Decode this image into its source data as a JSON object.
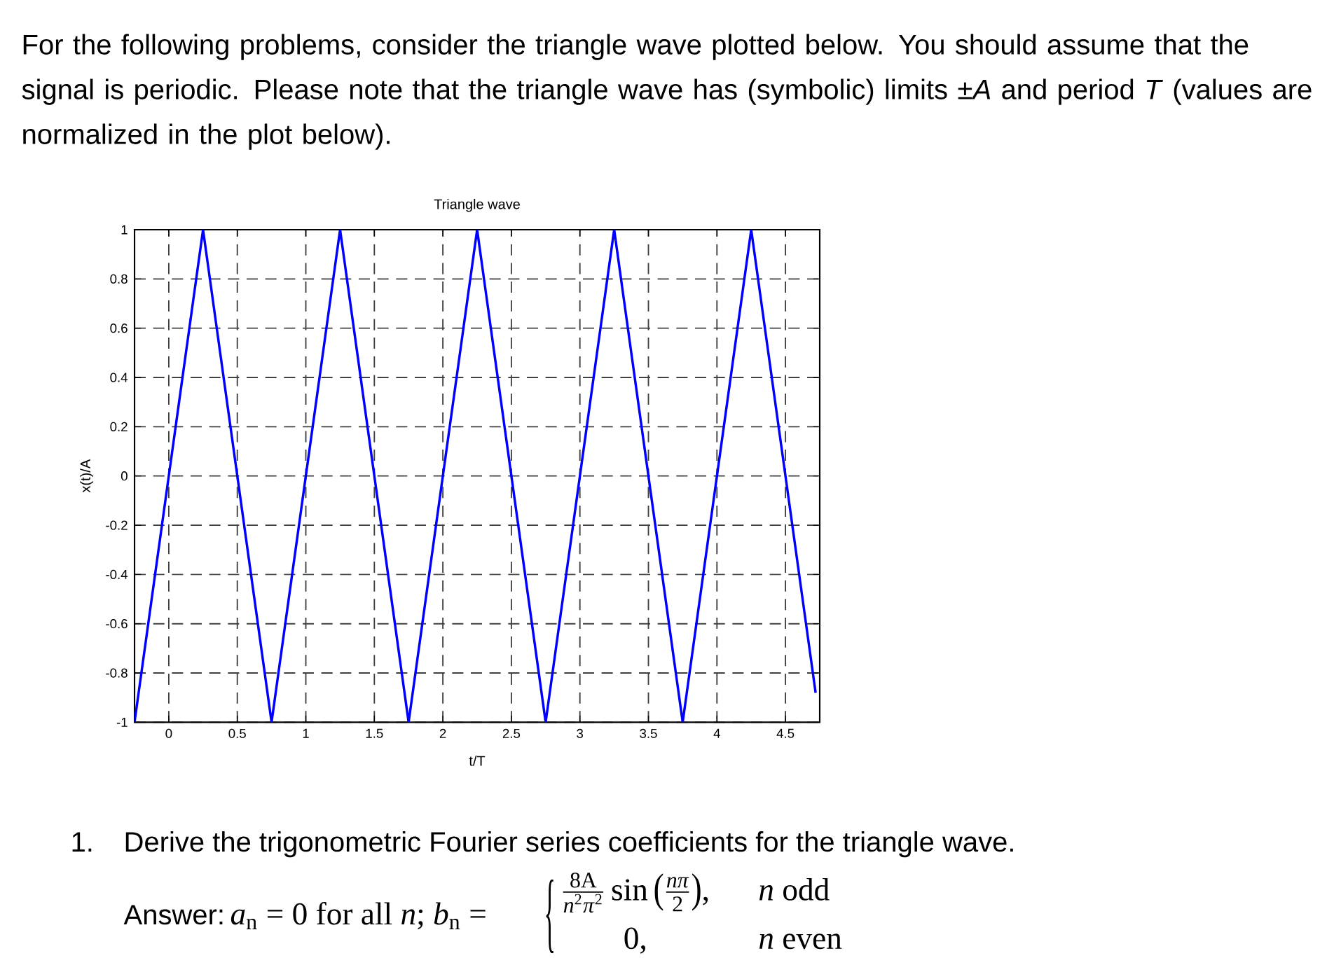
{
  "chart_data": {
    "type": "line",
    "title": "Triangle wave",
    "xlabel": "t/T",
    "ylabel": "x(t)/A",
    "x": [
      -0.25,
      0.25,
      0.75,
      1.25,
      1.75,
      2.25,
      2.75,
      3.25,
      3.75,
      4.25,
      4.72
    ],
    "series": [
      {
        "color": "#0000ff",
        "values": [
          -1,
          1,
          -1,
          1,
          -1,
          1,
          -1,
          1,
          -1,
          1,
          -0.88
        ]
      }
    ],
    "xlim": [
      -0.25,
      4.75
    ],
    "ylim": [
      -1,
      1
    ],
    "xticks": [
      0,
      0.5,
      1,
      1.5,
      2,
      2.5,
      3,
      3.5,
      4,
      4.5
    ],
    "yticks": [
      -1,
      -0.8,
      -0.6,
      -0.4,
      -0.2,
      0,
      0.2,
      0.4,
      0.6,
      0.8,
      1
    ],
    "grid": true,
    "marker": "none",
    "line_style": "solid",
    "annotations": [
      "For the following problems, consider the triangle wave plotted below. You should assume that the signal is periodic. Please note that the triangle wave has (symbolic) limits ±*A* and period *T* (values are normalized in the plot below).",
      "1.",
      "Derive the trigonometric Fourier series coefficients for the triangle wave.",
      "Answer:",
      "*a*$_{n}$ = 0 for all *n*; *b*$_{n}$ =",
      "{",
      "8A",
      "*n*$^{2}$*π*$^{2}$",
      "sin",
      "(",
      "*nπ*",
      "2",
      ")",
      ",",
      "*n* odd",
      "0,",
      "*n* even"
    ]
  }
}
